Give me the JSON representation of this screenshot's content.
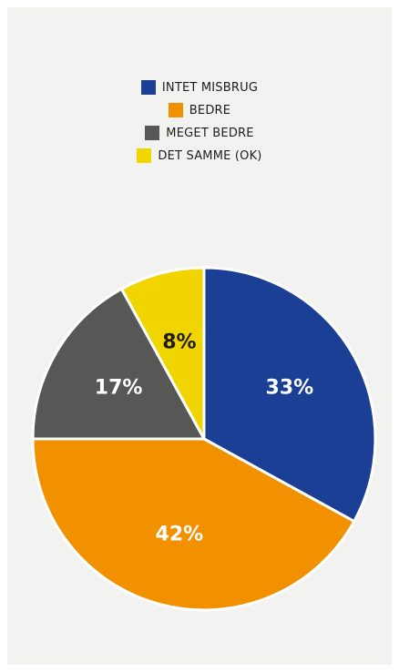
{
  "chart_data": {
    "type": "pie",
    "categories": [
      "INTET MISBRUG",
      "BEDRE",
      "MEGET BEDRE",
      "DET SAMME (OK)"
    ],
    "values": [
      33,
      42,
      17,
      8
    ],
    "value_labels": [
      "33%",
      "42%",
      "17%",
      "8%"
    ],
    "colors": [
      "#1a3f94",
      "#f29100",
      "#575756",
      "#f0d500"
    ]
  }
}
